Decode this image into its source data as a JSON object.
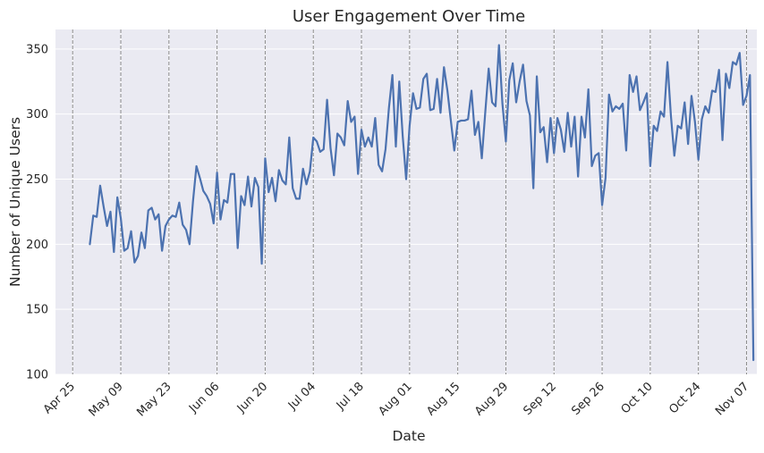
{
  "chart_data": {
    "type": "line",
    "title": "User Engagement Over Time",
    "xlabel": "Date",
    "ylabel": "Number of Unique Users",
    "ylim": [
      100,
      365
    ],
    "yticks": [
      100,
      150,
      200,
      250,
      300,
      350
    ],
    "xlim": [
      "2024-04-20",
      "2024-11-10"
    ],
    "xticks": [
      {
        "date": "2024-04-25",
        "label": "Apr 25"
      },
      {
        "date": "2024-05-09",
        "label": "May 09"
      },
      {
        "date": "2024-05-23",
        "label": "May 23"
      },
      {
        "date": "2024-06-06",
        "label": "Jun 06"
      },
      {
        "date": "2024-06-20",
        "label": "Jun 20"
      },
      {
        "date": "2024-07-04",
        "label": "Jul 04"
      },
      {
        "date": "2024-07-18",
        "label": "Jul 18"
      },
      {
        "date": "2024-08-01",
        "label": "Aug 01"
      },
      {
        "date": "2024-08-15",
        "label": "Aug 15"
      },
      {
        "date": "2024-08-29",
        "label": "Aug 29"
      },
      {
        "date": "2024-09-12",
        "label": "Sep 12"
      },
      {
        "date": "2024-09-26",
        "label": "Sep 26"
      },
      {
        "date": "2024-10-10",
        "label": "Oct 10"
      },
      {
        "date": "2024-10-24",
        "label": "Oct 24"
      },
      {
        "date": "2024-11-07",
        "label": "Nov 07"
      }
    ],
    "vlines_dates": [
      "2024-04-25",
      "2024-05-09",
      "2024-05-23",
      "2024-06-06",
      "2024-06-20",
      "2024-07-04",
      "2024-07-18",
      "2024-08-01",
      "2024-08-15",
      "2024-08-29",
      "2024-09-12",
      "2024-09-26",
      "2024-10-10",
      "2024-10-24",
      "2024-11-07"
    ],
    "grid": true,
    "colors": {
      "line": "#4c72b0",
      "background": "#eaeaf2",
      "grid": "#ffffff",
      "vline": "#8c8c8c"
    },
    "series": [
      {
        "start_date": "2024-04-30",
        "values": [
          200,
          222,
          221,
          245,
          229,
          214,
          225,
          194,
          236,
          220,
          195,
          197,
          210,
          186,
          191,
          209,
          197,
          226,
          228,
          219,
          223,
          195,
          214,
          219,
          222,
          221,
          232,
          215,
          211,
          200,
          233,
          260,
          251,
          241,
          237,
          231,
          216,
          255,
          219,
          234,
          232,
          254,
          254,
          197,
          237,
          230,
          252,
          229,
          251,
          244,
          185,
          266,
          240,
          251,
          233,
          257,
          249,
          246,
          282,
          243,
          235,
          235,
          258,
          246,
          256,
          282,
          279,
          271,
          273,
          311,
          274,
          253,
          285,
          282,
          276,
          310,
          294,
          298,
          254,
          288,
          275,
          282,
          275,
          297,
          261,
          256,
          273,
          305,
          330,
          275,
          325,
          283,
          250,
          291,
          316,
          304,
          305,
          327,
          331,
          303,
          304,
          327,
          301,
          336,
          318,
          295,
          272,
          294,
          295,
          295,
          296,
          318,
          284,
          294,
          266,
          301,
          335,
          309,
          306,
          353,
          308,
          279,
          326,
          339,
          309,
          325,
          338,
          310,
          299,
          243,
          329,
          286,
          290,
          263,
          297,
          270,
          297,
          288,
          271,
          301,
          275,
          298,
          252,
          298,
          282,
          319,
          260,
          268,
          270,
          230,
          251,
          315,
          302,
          306,
          304,
          308,
          272,
          330,
          317,
          329,
          303,
          309,
          316,
          260,
          291,
          287,
          302,
          298,
          340,
          299,
          268,
          291,
          289,
          309,
          277,
          314,
          294,
          265,
          296,
          306,
          301,
          318,
          317,
          334,
          280,
          331,
          320,
          340,
          338,
          347,
          307,
          314,
          330,
          111
        ]
      }
    ]
  }
}
